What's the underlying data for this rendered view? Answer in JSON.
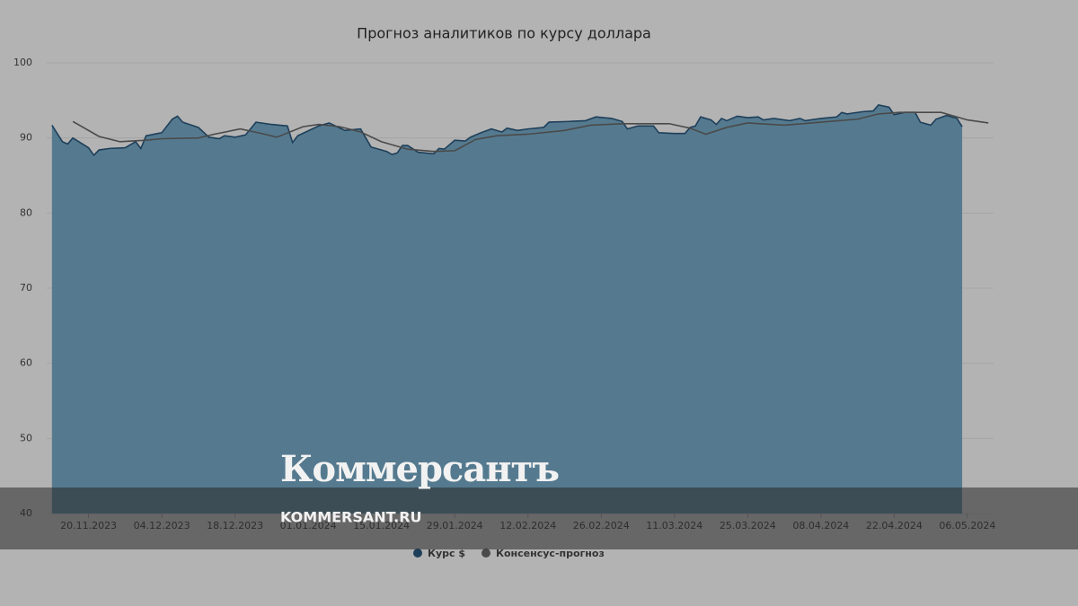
{
  "chart_data": {
    "type": "area-line",
    "title": "Прогноз аналитиков по курсу доллара",
    "xlim": [
      "12.11.2023",
      "11.05.2024"
    ],
    "xticks": [
      "20.11.2023",
      "04.12.2023",
      "18.12.2023",
      "01.01.2024",
      "15.01.2024",
      "29.01.2024",
      "12.02.2024",
      "26.02.2024",
      "11.03.2024",
      "25.03.2024",
      "08.04.2024",
      "22.04.2024",
      "06.05.2024"
    ],
    "ylim": [
      40,
      100
    ],
    "yticks": [
      40,
      50,
      60,
      70,
      80,
      90,
      100
    ],
    "grid": true,
    "legend": "bottom",
    "series": [
      {
        "name": "Курс $",
        "color": "#1e3f5a",
        "fill": "#557a8f",
        "kind": "area",
        "x": [
          "13.11.2023",
          "15.11.2023",
          "16.11.2023",
          "17.11.2023",
          "20.11.2023",
          "21.11.2023",
          "22.11.2023",
          "24.11.2023",
          "27.11.2023",
          "29.11.2023",
          "30.11.2023",
          "01.12.2023",
          "04.12.2023",
          "06.12.2023",
          "07.12.2023",
          "08.12.2023",
          "11.12.2023",
          "13.12.2023",
          "15.12.2023",
          "16.12.2023",
          "18.12.2023",
          "20.12.2023",
          "22.12.2023",
          "25.12.2023",
          "28.12.2023",
          "29.12.2023",
          "30.12.2023",
          "03.01.2024",
          "05.01.2024",
          "08.01.2024",
          "11.01.2024",
          "12.01.2024",
          "13.01.2024",
          "16.01.2024",
          "17.01.2024",
          "18.01.2024",
          "19.01.2024",
          "20.01.2024",
          "22.01.2024",
          "25.01.2024",
          "26.01.2024",
          "27.01.2024",
          "29.01.2024",
          "31.01.2024",
          "01.02.2024",
          "03.02.2024",
          "05.02.2024",
          "07.02.2024",
          "08.02.2024",
          "10.02.2024",
          "12.02.2024",
          "15.02.2024",
          "16.02.2024",
          "20.02.2024",
          "23.02.2024",
          "25.02.2024",
          "28.02.2024",
          "01.03.2024",
          "02.03.2024",
          "04.03.2024",
          "07.03.2024",
          "08.03.2024",
          "11.03.2024",
          "13.03.2024",
          "14.03.2024",
          "15.03.2024",
          "16.03.2024",
          "18.03.2024",
          "19.03.2024",
          "20.03.2024",
          "21.03.2024",
          "23.03.2024",
          "25.03.2024",
          "27.03.2024",
          "28.03.2024",
          "30.03.2024",
          "02.04.2024",
          "04.04.2024",
          "05.04.2024",
          "08.04.2024",
          "11.04.2024",
          "12.04.2024",
          "13.04.2024",
          "16.04.2024",
          "18.04.2024",
          "19.04.2024",
          "21.04.2024",
          "22.04.2024",
          "24.04.2024",
          "26.04.2024",
          "27.04.2024",
          "29.04.2024",
          "30.04.2024",
          "02.05.2024",
          "04.05.2024",
          "05.05.2024"
        ],
        "values": [
          91.7,
          89.5,
          89.2,
          90.0,
          88.7,
          87.7,
          88.4,
          88.6,
          88.7,
          89.5,
          88.6,
          90.3,
          90.7,
          92.5,
          92.9,
          92.1,
          91.4,
          90.1,
          89.9,
          90.3,
          90.1,
          90.4,
          92.1,
          91.8,
          91.6,
          89.4,
          90.3,
          91.6,
          92.0,
          91.0,
          91.2,
          90.0,
          88.8,
          88.2,
          87.8,
          88.0,
          89.0,
          89.0,
          88.1,
          87.9,
          88.6,
          88.5,
          89.7,
          89.6,
          90.1,
          90.7,
          91.2,
          90.8,
          91.3,
          91.0,
          91.2,
          91.4,
          92.1,
          92.2,
          92.3,
          92.8,
          92.6,
          92.2,
          91.2,
          91.6,
          91.6,
          90.7,
          90.6,
          90.6,
          91.4,
          91.6,
          92.8,
          92.4,
          91.8,
          92.6,
          92.3,
          92.9,
          92.7,
          92.8,
          92.4,
          92.6,
          92.3,
          92.6,
          92.3,
          92.6,
          92.8,
          93.4,
          93.2,
          93.5,
          93.6,
          94.4,
          94.1,
          93.1,
          93.4,
          93.4,
          92.1,
          91.7,
          92.5,
          93.0,
          92.6,
          91.5
        ]
      },
      {
        "name": "Консенсус-прогноз",
        "color": "#4a4a4a",
        "kind": "line",
        "x": [
          "17.11.2023",
          "22.11.2023",
          "26.11.2023",
          "01.12.2023",
          "04.12.2023",
          "11.12.2023",
          "14.12.2023",
          "19.12.2023",
          "23.12.2023",
          "26.12.2023",
          "31.12.2023",
          "03.01.2024",
          "07.01.2024",
          "11.01.2024",
          "15.01.2024",
          "20.01.2024",
          "25.01.2024",
          "29.01.2024",
          "02.02.2024",
          "06.02.2024",
          "12.02.2024",
          "19.02.2024",
          "24.02.2024",
          "01.03.2024",
          "10.03.2024",
          "14.03.2024",
          "17.03.2024",
          "21.03.2024",
          "25.03.2024",
          "01.04.2024",
          "08.04.2024",
          "15.04.2024",
          "19.04.2024",
          "23.04.2024",
          "01.05.2024",
          "06.05.2024",
          "10.05.2024"
        ],
        "values": [
          92.2,
          90.2,
          89.5,
          89.7,
          89.9,
          90.0,
          90.5,
          91.2,
          90.6,
          90.1,
          91.5,
          91.8,
          91.5,
          90.8,
          89.5,
          88.5,
          88.2,
          88.3,
          89.8,
          90.3,
          90.5,
          91.0,
          91.7,
          91.9,
          91.9,
          91.3,
          90.5,
          91.4,
          92.0,
          91.7,
          92.1,
          92.5,
          93.2,
          93.4,
          93.4,
          92.4,
          92.0
        ]
      }
    ]
  },
  "watermark": {
    "logo": "Коммерсантъ",
    "url": "KOMMERSANT.RU"
  }
}
